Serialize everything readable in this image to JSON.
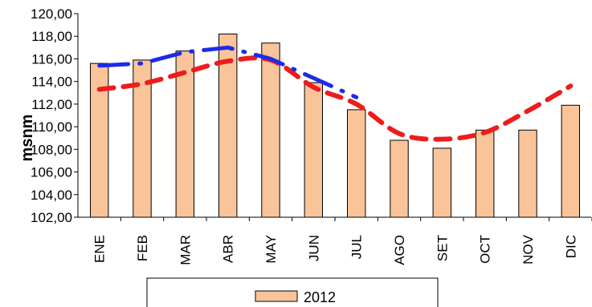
{
  "chart_data": {
    "type": "bar",
    "categories": [
      "ENE",
      "FEB",
      "MAR",
      "ABR",
      "MAY",
      "JUN",
      "JUL",
      "AGO",
      "SET",
      "OCT",
      "NOV",
      "DIC"
    ],
    "series": [
      {
        "name": "2012",
        "type": "bar",
        "color": "#f9c49a",
        "values": [
          115.6,
          115.9,
          116.7,
          118.2,
          117.4,
          113.9,
          111.5,
          108.8,
          108.1,
          109.7,
          109.7,
          111.9
        ]
      },
      {
        "type": "line",
        "style": "dashed",
        "color": "#ee1c1c",
        "values": [
          113.3,
          113.8,
          114.8,
          115.8,
          115.9,
          113.5,
          112.0,
          109.4,
          108.9,
          109.5,
          111.4,
          113.6
        ]
      },
      {
        "type": "line",
        "style": "dash-dot",
        "color": "#1e2be6",
        "values": [
          115.4,
          115.6,
          116.6,
          117.0,
          116.0,
          114.3,
          112.6,
          null,
          null,
          null,
          null,
          null
        ]
      }
    ],
    "ylabel": "msnm",
    "ylim": [
      102,
      120
    ],
    "yticks": [
      "102,00",
      "104,00",
      "106,00",
      "108,00",
      "110,00",
      "112,00",
      "114,00",
      "116,00",
      "118,00",
      "120,00"
    ],
    "grid": false,
    "legend_position": "bottom"
  }
}
